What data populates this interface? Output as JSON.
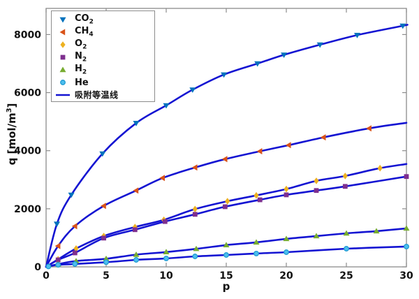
{
  "chart_data": {
    "type": "line",
    "title": "",
    "xlabel": "p",
    "ylabel": "q [mol/m^3]",
    "ylabel_parts": {
      "pre": "q [mol/m",
      "sup": "3",
      "post": "]"
    },
    "xlim": [
      0,
      30
    ],
    "ylim": [
      0,
      8900
    ],
    "xticks": [
      0,
      5,
      10,
      15,
      20,
      25,
      30
    ],
    "yticks": [
      0,
      2000,
      4000,
      6000,
      8000
    ],
    "grid": false,
    "legend_position": "top-left",
    "background_color": "#FFFFFF",
    "axis_color": "#8C8C8C",
    "tick_label_color": "#111111",
    "fit_line_color": "#1414D2",
    "fit_line_label": "吸附等温线",
    "series": [
      {
        "name": "CO2",
        "label_main": "CO",
        "label_sub": "2",
        "marker": "triangle-down",
        "color": "#0072BD",
        "points": [
          [
            0.9,
            1480
          ],
          [
            2.1,
            2480
          ],
          [
            4.7,
            3900
          ],
          [
            7.5,
            4950
          ],
          [
            10,
            5560
          ],
          [
            12.2,
            6100
          ],
          [
            14.8,
            6620
          ],
          [
            17.6,
            7000
          ],
          [
            19.8,
            7300
          ],
          [
            22.8,
            7650
          ],
          [
            25.9,
            7980
          ],
          [
            29.7,
            8300
          ]
        ],
        "curve_end": [
          30,
          8330
        ]
      },
      {
        "name": "CH4",
        "label_main": "CH",
        "label_sub": "4",
        "marker": "triangle-left",
        "color": "#D95319",
        "points": [
          [
            1,
            720
          ],
          [
            2.4,
            1400
          ],
          [
            4.8,
            2100
          ],
          [
            7.5,
            2630
          ],
          [
            9.7,
            3060
          ],
          [
            12.4,
            3420
          ],
          [
            14.9,
            3710
          ],
          [
            17.8,
            3980
          ],
          [
            20.2,
            4190
          ],
          [
            23.1,
            4460
          ],
          [
            26.9,
            4770
          ]
        ],
        "curve_end": [
          30,
          4960
        ]
      },
      {
        "name": "O2",
        "label_main": "O",
        "label_sub": "2",
        "marker": "diamond",
        "color": "#EDB120",
        "points": [
          [
            1,
            260
          ],
          [
            2.5,
            630
          ],
          [
            4.8,
            1060
          ],
          [
            7.4,
            1370
          ],
          [
            9.8,
            1620
          ],
          [
            12.4,
            1990
          ],
          [
            15.1,
            2260
          ],
          [
            17.5,
            2460
          ],
          [
            20,
            2680
          ],
          [
            22.5,
            2960
          ],
          [
            24.9,
            3130
          ],
          [
            27.8,
            3400
          ]
        ],
        "curve_end": [
          30,
          3540
        ]
      },
      {
        "name": "N2",
        "label_main": "N",
        "label_sub": "2",
        "marker": "square",
        "color": "#7E2F8E",
        "points": [
          [
            1,
            240
          ],
          [
            2.4,
            480
          ],
          [
            4.8,
            990
          ],
          [
            7.4,
            1280
          ],
          [
            9.9,
            1560
          ],
          [
            12.4,
            1810
          ],
          [
            14.9,
            2070
          ],
          [
            17.8,
            2310
          ],
          [
            20,
            2480
          ],
          [
            22.5,
            2630
          ],
          [
            24.9,
            2770
          ],
          [
            30,
            3110
          ]
        ],
        "curve_end": [
          30,
          3110
        ]
      },
      {
        "name": "H2",
        "label_main": "H",
        "label_sub": "2",
        "marker": "triangle-up",
        "color": "#77AC30",
        "points": [
          [
            1,
            95
          ],
          [
            2.5,
            200
          ],
          [
            5,
            280
          ],
          [
            7.5,
            420
          ],
          [
            10,
            510
          ],
          [
            12.5,
            620
          ],
          [
            15,
            750
          ],
          [
            17.5,
            845
          ],
          [
            20,
            965
          ],
          [
            22.5,
            1060
          ],
          [
            25,
            1155
          ],
          [
            27.5,
            1230
          ],
          [
            30,
            1325
          ]
        ],
        "curve_end": [
          30,
          1325
        ]
      },
      {
        "name": "He",
        "label_main": "He",
        "label_sub": "",
        "marker": "circle",
        "color": "#4DBEEE",
        "edge_color": "#1F9BD2",
        "points": [
          [
            0.2,
            15
          ],
          [
            1,
            70
          ],
          [
            2.4,
            100
          ],
          [
            5,
            160
          ],
          [
            7.5,
            240
          ],
          [
            10,
            290
          ],
          [
            12.4,
            360
          ],
          [
            15,
            410
          ],
          [
            17.5,
            460
          ],
          [
            20,
            505
          ],
          [
            25,
            625
          ],
          [
            30,
            700
          ]
        ],
        "curve_end": [
          30,
          700
        ]
      }
    ]
  }
}
